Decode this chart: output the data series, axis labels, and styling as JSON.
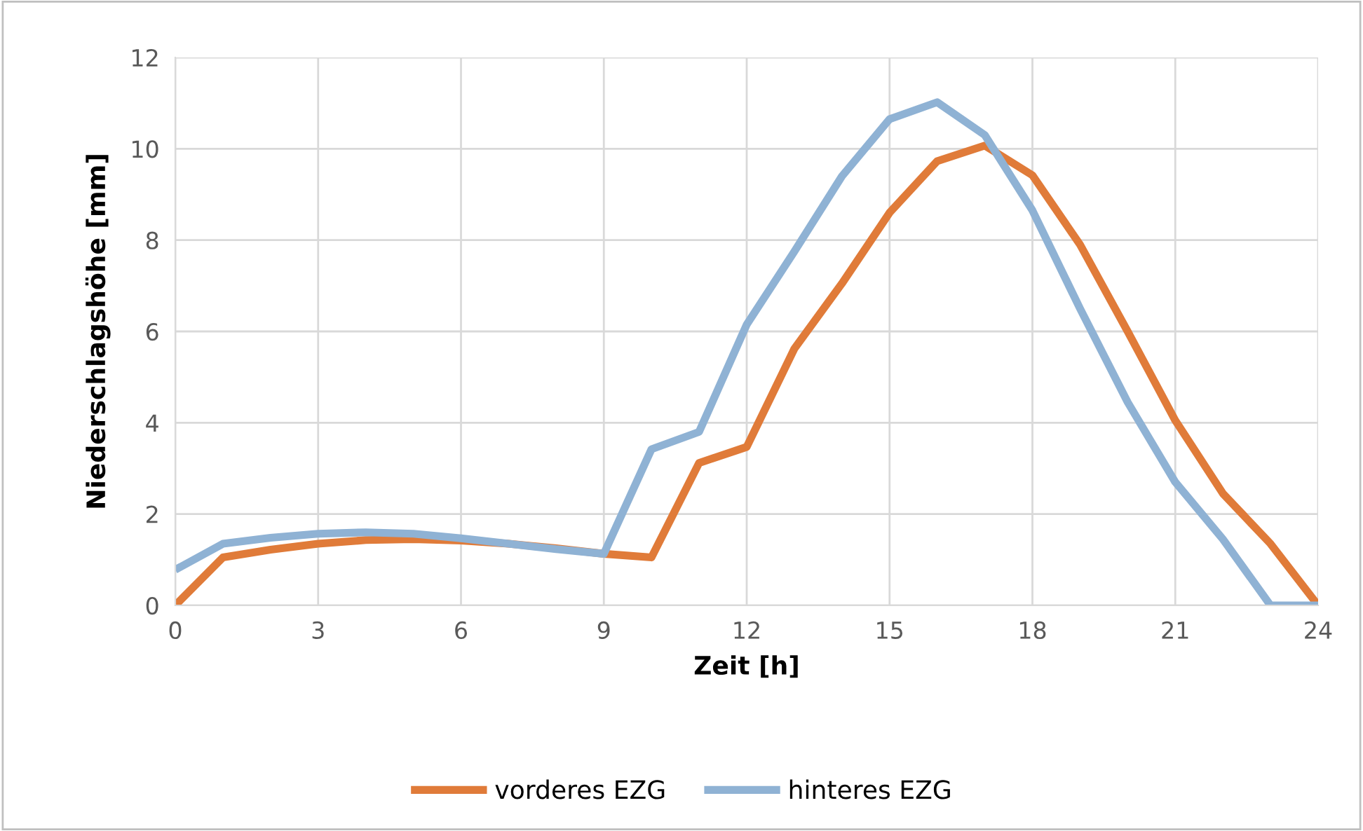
{
  "chart_data": {
    "type": "line",
    "xlabel": "Zeit [h]",
    "ylabel": "Niederschlagshöhe [mm]",
    "x": [
      0,
      1,
      2,
      3,
      4,
      5,
      6,
      7,
      8,
      9,
      10,
      11,
      12,
      13,
      14,
      15,
      16,
      17,
      18,
      19,
      20,
      21,
      22,
      23,
      24
    ],
    "series": [
      {
        "name": "vorderes EZG",
        "color": "#e07b39",
        "values": [
          0,
          1.05,
          1.22,
          1.35,
          1.43,
          1.45,
          1.42,
          1.35,
          1.25,
          1.13,
          1.05,
          3.12,
          3.47,
          5.62,
          7.05,
          8.6,
          9.73,
          10.07,
          9.42,
          7.9,
          6.0,
          4.05,
          2.45,
          1.35,
          0
        ]
      },
      {
        "name": "hinteres EZG",
        "color": "#8fb2d4",
        "values": [
          0.78,
          1.35,
          1.48,
          1.57,
          1.6,
          1.57,
          1.47,
          1.35,
          1.23,
          1.13,
          3.42,
          3.8,
          6.15,
          7.75,
          9.4,
          10.65,
          11.02,
          10.3,
          8.65,
          6.5,
          4.45,
          2.7,
          1.45,
          0,
          0
        ]
      }
    ],
    "xlim": [
      0,
      24
    ],
    "xticks": [
      0,
      3,
      6,
      9,
      12,
      15,
      18,
      21,
      24
    ],
    "ylim": [
      0,
      12
    ],
    "yticks": [
      0,
      2,
      4,
      6,
      8,
      10,
      12
    ],
    "grid": true,
    "legend": "bottom",
    "marker": "none",
    "line_style": "solid"
  }
}
